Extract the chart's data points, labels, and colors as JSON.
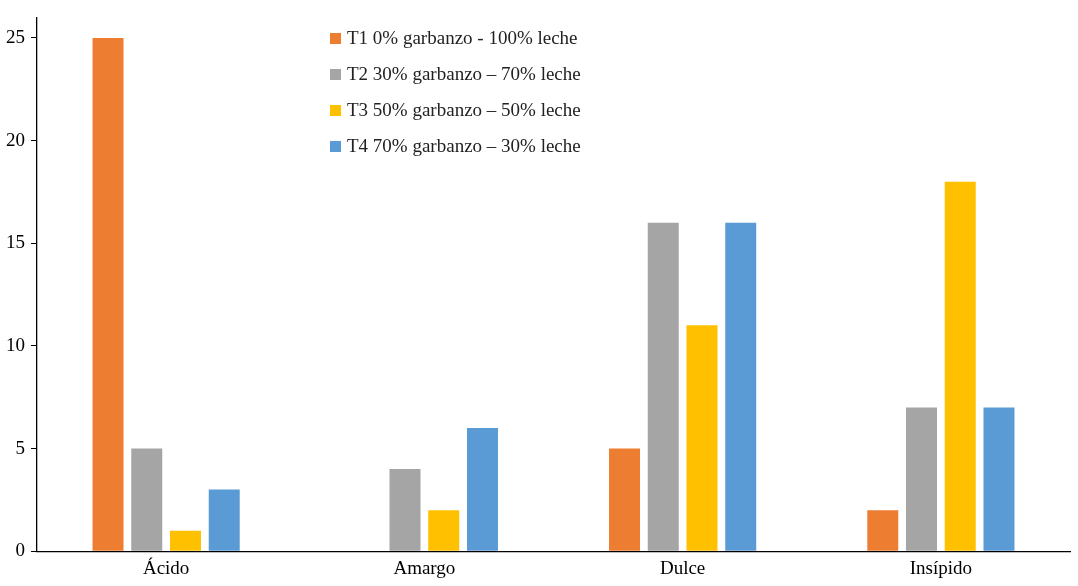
{
  "chart_data": {
    "type": "bar",
    "categories": [
      "Ácido",
      "Amargo",
      "Dulce",
      "Insípido"
    ],
    "series": [
      {
        "name": "T1 0% garbanzo - 100% leche",
        "color": "#ed7d31",
        "values": [
          25,
          0,
          5,
          2
        ]
      },
      {
        "name": "T2 30% garbanzo – 70% leche",
        "color": "#a5a5a5",
        "values": [
          5,
          4,
          16,
          7
        ]
      },
      {
        "name": "T3 50% garbanzo – 50% leche",
        "color": "#ffc000",
        "values": [
          1,
          2,
          11,
          18
        ]
      },
      {
        "name": "T4 70% garbanzo – 30% leche",
        "color": "#5b9bd5",
        "values": [
          3,
          6,
          16,
          7
        ]
      }
    ],
    "ylim": [
      0,
      26
    ],
    "yticks": [
      0,
      5,
      10,
      15,
      20,
      25
    ],
    "grid": false,
    "legend": "top"
  }
}
